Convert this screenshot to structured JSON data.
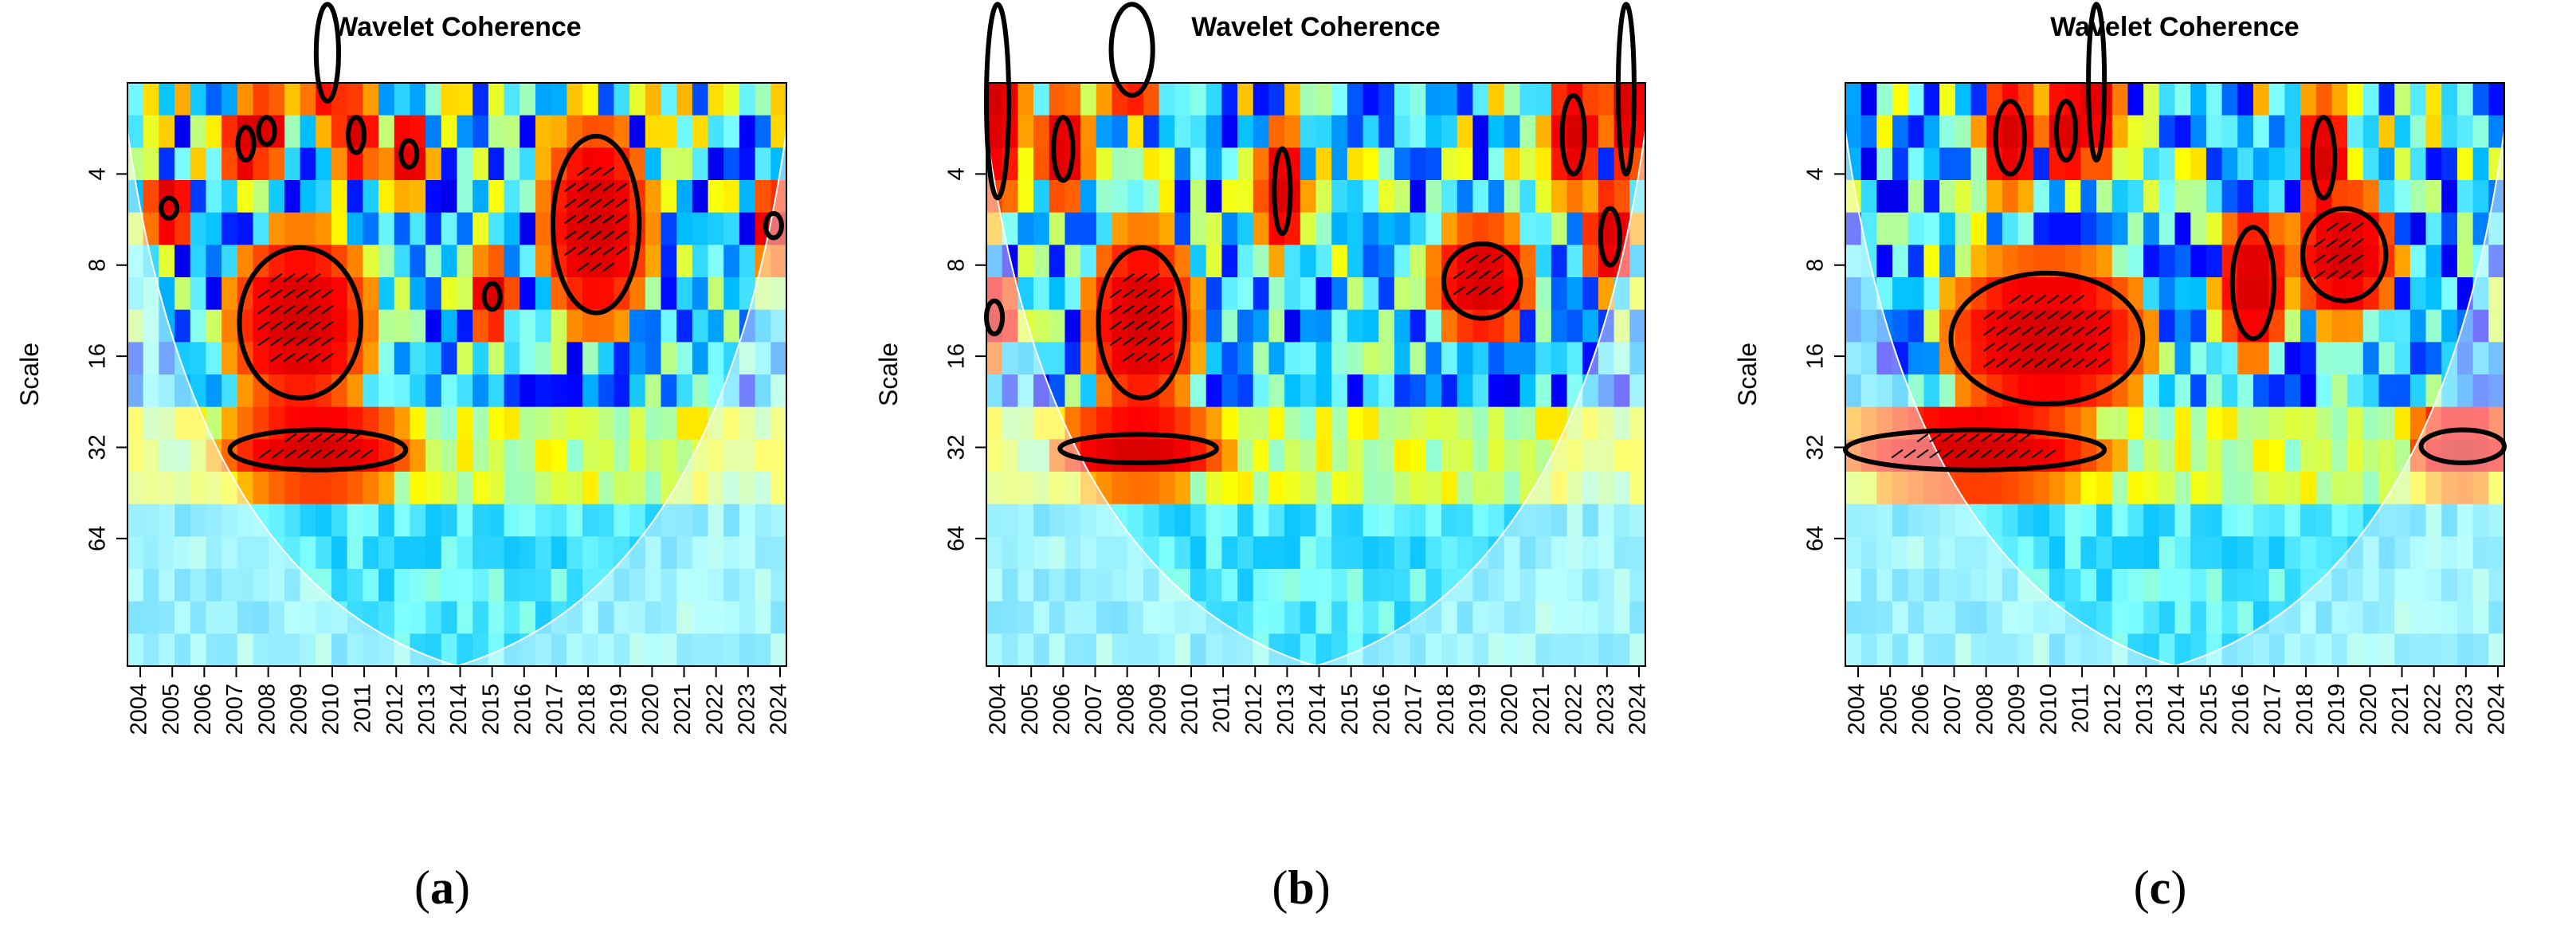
{
  "chart_data": [
    {
      "type": "heatmap",
      "panel_label": "a",
      "title": "Wavelet Coherence",
      "ylabel": "Scale",
      "xlabel": "",
      "x_ticks": [
        "2004",
        "2005",
        "2006",
        "2007",
        "2008",
        "2009",
        "2010",
        "2011",
        "2012",
        "2013",
        "2014",
        "2015",
        "2016",
        "2017",
        "2018",
        "2019",
        "2020",
        "2021",
        "2022",
        "2023",
        "2024"
      ],
      "y_ticks": [
        "4",
        "8",
        "16",
        "32",
        "64"
      ],
      "xlim": [
        2003.6,
        2024.2
      ],
      "ylim_log2": [
        1,
        7.4
      ],
      "cone_of_influence_apex_year": 2013.9,
      "colormap": [
        "#00007f",
        "#0000ff",
        "#00bfff",
        "#7fffff",
        "#ffff00",
        "#ff8000",
        "#ff0000",
        "#bf0000"
      ],
      "significant_regions": [
        {
          "x_start": 2007.1,
          "x_end": 2010.9,
          "scale_low": 7.0,
          "scale_high": 22.0
        },
        {
          "x_start": 2006.8,
          "x_end": 2012.3,
          "scale_low": 28.0,
          "scale_high": 38.0
        },
        {
          "x_start": 2016.9,
          "x_end": 2019.6,
          "scale_low": 3.0,
          "scale_high": 11.5
        },
        {
          "x_start": 2007.1,
          "x_end": 2007.5,
          "scale_low": 2.8,
          "scale_high": 3.6
        },
        {
          "x_start": 2007.8,
          "x_end": 2008.1,
          "scale_low": 2.6,
          "scale_high": 3.2
        },
        {
          "x_start": 2009.5,
          "x_end": 2010.2,
          "scale_low": 1.1,
          "scale_high": 2.3
        },
        {
          "x_start": 2010.6,
          "x_end": 2010.9,
          "scale_low": 2.6,
          "scale_high": 3.4
        },
        {
          "x_start": 2012.2,
          "x_end": 2012.6,
          "scale_low": 3.1,
          "scale_high": 3.8
        },
        {
          "x_start": 2014.8,
          "x_end": 2015.2,
          "scale_low": 9.2,
          "scale_high": 11.2
        },
        {
          "x_start": 2004.7,
          "x_end": 2005.1,
          "scale_low": 4.8,
          "scale_high": 5.6
        },
        {
          "x_start": 2023.6,
          "x_end": 2024.0,
          "scale_low": 5.4,
          "scale_high": 6.5
        }
      ]
    },
    {
      "type": "heatmap",
      "panel_label": "b",
      "title": "Wavelet Coherence",
      "ylabel": "Scale",
      "xlabel": "",
      "x_ticks": [
        "2004",
        "2005",
        "2006",
        "2007",
        "2008",
        "2009",
        "2010",
        "2011",
        "2012",
        "2013",
        "2014",
        "2015",
        "2016",
        "2017",
        "2018",
        "2019",
        "2020",
        "2021",
        "2022",
        "2023",
        "2024"
      ],
      "y_ticks": [
        "4",
        "8",
        "16",
        "32",
        "64"
      ],
      "xlim": [
        2003.6,
        2024.2
      ],
      "ylim_log2": [
        1,
        7.4
      ],
      "cone_of_influence_apex_year": 2013.9,
      "colormap": [
        "#00007f",
        "#0000ff",
        "#00bfff",
        "#7fffff",
        "#ffff00",
        "#ff8000",
        "#ff0000",
        "#bf0000"
      ],
      "significant_regions": [
        {
          "x_start": 2007.1,
          "x_end": 2009.8,
          "scale_low": 7.0,
          "scale_high": 22.0
        },
        {
          "x_start": 2005.9,
          "x_end": 2010.8,
          "scale_low": 29.0,
          "scale_high": 36.0
        },
        {
          "x_start": 2017.9,
          "x_end": 2020.3,
          "scale_low": 6.8,
          "scale_high": 12.0
        },
        {
          "x_start": 2005.7,
          "x_end": 2006.3,
          "scale_low": 2.6,
          "scale_high": 4.2
        },
        {
          "x_start": 2007.5,
          "x_end": 2008.8,
          "scale_low": 1.1,
          "scale_high": 2.2
        },
        {
          "x_start": 2012.6,
          "x_end": 2013.1,
          "scale_low": 3.3,
          "scale_high": 6.3
        },
        {
          "x_start": 2021.6,
          "x_end": 2022.3,
          "scale_low": 2.2,
          "scale_high": 4.0
        },
        {
          "x_start": 2022.8,
          "x_end": 2023.4,
          "scale_low": 5.2,
          "scale_high": 8.0
        },
        {
          "x_start": 2023.4,
          "x_end": 2023.8,
          "scale_low": 1.1,
          "scale_high": 4.0
        },
        {
          "x_start": 2003.6,
          "x_end": 2004.1,
          "scale_low": 10.5,
          "scale_high": 13.5
        },
        {
          "x_start": 2003.6,
          "x_end": 2004.3,
          "scale_low": 1.1,
          "scale_high": 4.8
        }
      ]
    },
    {
      "type": "heatmap",
      "panel_label": "c",
      "title": "Wavelet Coherence",
      "ylabel": "Scale",
      "xlabel": "",
      "x_ticks": [
        "2004",
        "2005",
        "2006",
        "2007",
        "2008",
        "2009",
        "2010",
        "2011",
        "2012",
        "2013",
        "2014",
        "2015",
        "2016",
        "2017",
        "2018",
        "2019",
        "2020",
        "2021",
        "2022",
        "2023",
        "2024"
      ],
      "y_ticks": [
        "4",
        "8",
        "16",
        "32",
        "64"
      ],
      "xlim": [
        2003.6,
        2024.2
      ],
      "ylim_log2": [
        1,
        7.4
      ],
      "cone_of_influence_apex_year": 2013.9,
      "colormap": [
        "#00007f",
        "#0000ff",
        "#00bfff",
        "#7fffff",
        "#ffff00",
        "#ff8000",
        "#ff0000",
        "#bf0000"
      ],
      "significant_regions": [
        {
          "x_start": 2006.9,
          "x_end": 2012.9,
          "scale_low": 8.5,
          "scale_high": 23.0
        },
        {
          "x_start": 2003.6,
          "x_end": 2011.7,
          "scale_low": 28.0,
          "scale_high": 38.0
        },
        {
          "x_start": 2015.7,
          "x_end": 2017.0,
          "scale_low": 6.0,
          "scale_high": 14.0
        },
        {
          "x_start": 2017.9,
          "x_end": 2020.5,
          "scale_low": 5.2,
          "scale_high": 10.5
        },
        {
          "x_start": 2008.3,
          "x_end": 2009.2,
          "scale_low": 2.3,
          "scale_high": 4.0
        },
        {
          "x_start": 2010.2,
          "x_end": 2010.8,
          "scale_low": 2.3,
          "scale_high": 3.6
        },
        {
          "x_start": 2011.2,
          "x_end": 2011.7,
          "scale_low": 1.1,
          "scale_high": 3.6
        },
        {
          "x_start": 2018.2,
          "x_end": 2018.9,
          "scale_low": 2.6,
          "scale_high": 4.8
        },
        {
          "x_start": 2021.6,
          "x_end": 2024.2,
          "scale_low": 28.0,
          "scale_high": 36.0
        }
      ]
    }
  ]
}
